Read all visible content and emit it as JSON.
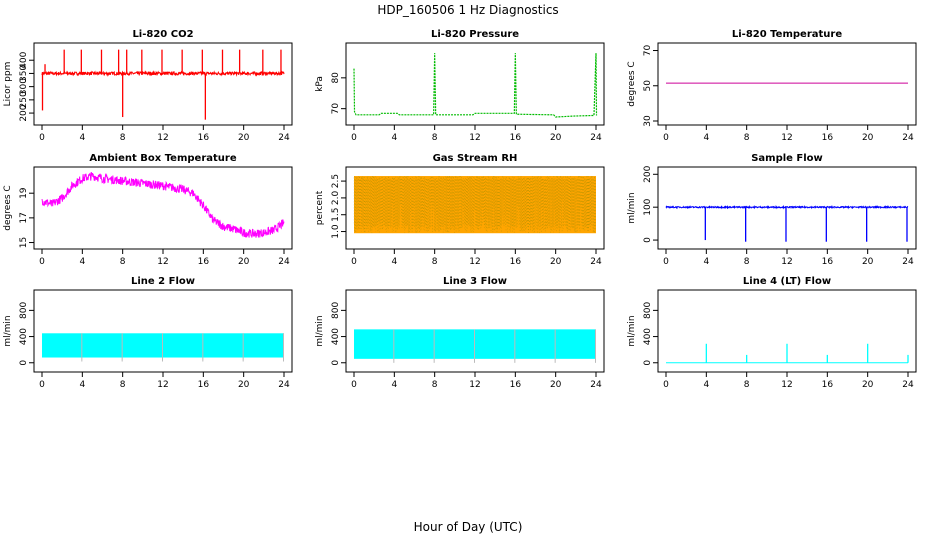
{
  "figure": {
    "title": "HDP_160506  1 Hz Diagnostics",
    "xlabel": "Hour of Day (UTC)"
  },
  "chart_data": [
    {
      "id": "co2",
      "type": "line",
      "title": "Li-820 CO2",
      "ylabel": "Licor ppm",
      "color": "#ff0000",
      "xlim": [
        0,
        24
      ],
      "ylim": [
        170,
        450
      ],
      "xticks": [
        0,
        4,
        8,
        12,
        16,
        20,
        24
      ],
      "yticks": [
        200,
        250,
        300,
        350,
        400
      ],
      "baseline": 350,
      "noise": 6,
      "dense": true,
      "spikes": [
        {
          "x": 0.05,
          "y": 210
        },
        {
          "x": 0.3,
          "y": 385
        },
        {
          "x": 2.2,
          "y": 440
        },
        {
          "x": 3.9,
          "y": 440
        },
        {
          "x": 5.9,
          "y": 440
        },
        {
          "x": 7.6,
          "y": 440
        },
        {
          "x": 8.0,
          "y": 185
        },
        {
          "x": 8.4,
          "y": 440
        },
        {
          "x": 9.9,
          "y": 440
        },
        {
          "x": 11.9,
          "y": 440
        },
        {
          "x": 13.9,
          "y": 440
        },
        {
          "x": 15.9,
          "y": 440
        },
        {
          "x": 16.2,
          "y": 175
        },
        {
          "x": 17.9,
          "y": 440
        },
        {
          "x": 19.6,
          "y": 440
        },
        {
          "x": 21.9,
          "y": 440
        },
        {
          "x": 23.7,
          "y": 440
        }
      ],
      "points": []
    },
    {
      "id": "pressure",
      "type": "line",
      "title": "Li-820 Pressure",
      "ylabel": "kPa",
      "color": "#00bb00",
      "xlim": [
        0,
        24
      ],
      "ylim": [
        66,
        90
      ],
      "xticks": [
        0,
        4,
        8,
        12,
        16,
        20,
        24
      ],
      "yticks": [
        70,
        80
      ],
      "noise": 0,
      "dense": false,
      "points": [
        [
          0,
          83
        ],
        [
          0.05,
          69
        ],
        [
          0.2,
          68
        ],
        [
          2.5,
          68
        ],
        [
          2.7,
          68.5
        ],
        [
          4.3,
          68.5
        ],
        [
          4.5,
          68
        ],
        [
          7.9,
          68
        ],
        [
          8.0,
          88
        ],
        [
          8.1,
          68
        ],
        [
          11.8,
          68
        ],
        [
          12.0,
          68.5
        ],
        [
          15.9,
          68.5
        ],
        [
          16.0,
          88
        ],
        [
          16.1,
          68.2
        ],
        [
          19.8,
          68
        ],
        [
          20.0,
          67.3
        ],
        [
          21.8,
          67.6
        ],
        [
          23.8,
          67.8
        ],
        [
          24.0,
          88
        ],
        [
          24.05,
          67.8
        ]
      ]
    },
    {
      "id": "temperature",
      "type": "line",
      "title": "Li-820 Temperature",
      "ylabel": "degrees C",
      "color": "#cc0099",
      "xlim": [
        0,
        24
      ],
      "ylim": [
        30,
        72
      ],
      "xticks": [
        0,
        4,
        8,
        12,
        16,
        20,
        24
      ],
      "yticks": [
        30,
        50,
        70
      ],
      "noise": 0,
      "dense": false,
      "points": [
        [
          0,
          51.5
        ],
        [
          24,
          51.5
        ]
      ]
    },
    {
      "id": "ambient",
      "type": "line",
      "title": "Ambient Box Temperature",
      "ylabel": "degrees C",
      "color": "#ff00ff",
      "xlim": [
        0,
        24
      ],
      "ylim": [
        14.8,
        20.8
      ],
      "xticks": [
        0,
        4,
        8,
        12,
        16,
        20,
        24
      ],
      "yticks": [
        15,
        17,
        19
      ],
      "noise": 0.35,
      "dense": true,
      "points": [
        [
          0,
          18.4
        ],
        [
          1,
          18.1
        ],
        [
          2,
          18.6
        ],
        [
          3,
          19.6
        ],
        [
          4,
          20.2
        ],
        [
          5,
          20.4
        ],
        [
          6,
          20.2
        ],
        [
          8,
          20.0
        ],
        [
          10,
          19.8
        ],
        [
          12,
          19.6
        ],
        [
          14,
          19.3
        ],
        [
          15,
          19.0
        ],
        [
          16,
          18.0
        ],
        [
          17,
          16.8
        ],
        [
          18,
          16.3
        ],
        [
          19,
          16.1
        ],
        [
          20,
          15.8
        ],
        [
          21,
          15.7
        ],
        [
          22,
          15.8
        ],
        [
          23,
          16.0
        ],
        [
          24,
          16.6
        ]
      ]
    },
    {
      "id": "rh",
      "type": "band",
      "title": "Gas Stream RH",
      "ylabel": "percent",
      "color": "#ffa500",
      "color2": "#888800",
      "xlim": [
        0,
        24
      ],
      "ylim": [
        0.6,
        2.8
      ],
      "xticks": [
        0,
        4,
        8,
        12,
        16,
        20,
        24
      ],
      "yticks": [
        1.0,
        1.5,
        2.0,
        2.5
      ],
      "upper": 2.65,
      "lower": 0.95
    },
    {
      "id": "sample_flow",
      "type": "line",
      "title": "Sample Flow",
      "ylabel": "ml/min",
      "color": "#0000ff",
      "xlim": [
        0,
        24
      ],
      "ylim": [
        -15,
        210
      ],
      "xticks": [
        0,
        4,
        8,
        12,
        16,
        20,
        24
      ],
      "yticks": [
        0,
        100,
        200
      ],
      "baseline": 100,
      "noise": 2,
      "dense": true,
      "spikes": [
        {
          "x": 3.9,
          "y": 0
        },
        {
          "x": 7.9,
          "y": -5
        },
        {
          "x": 11.9,
          "y": -5
        },
        {
          "x": 15.9,
          "y": -5
        },
        {
          "x": 19.9,
          "y": -5
        },
        {
          "x": 23.9,
          "y": -5
        }
      ],
      "points": []
    },
    {
      "id": "line2",
      "type": "band",
      "title": "Line 2 Flow",
      "ylabel": "ml/min",
      "color": "#00ffff",
      "xlim": [
        0,
        24
      ],
      "ylim": [
        -80,
        1050
      ],
      "xticks": [
        0,
        4,
        8,
        12,
        16,
        20,
        24
      ],
      "yticks": [
        0,
        400,
        800
      ],
      "upper": 450,
      "lower": 80,
      "gaps": [
        3.95,
        7.95,
        11.95,
        15.95,
        19.95,
        23.95
      ]
    },
    {
      "id": "line3",
      "type": "band",
      "title": "Line 3 Flow",
      "ylabel": "ml/min",
      "color": "#00ffff",
      "xlim": [
        0,
        24
      ],
      "ylim": [
        -80,
        1050
      ],
      "xticks": [
        0,
        4,
        8,
        12,
        16,
        20,
        24
      ],
      "yticks": [
        0,
        400,
        800
      ],
      "upper": 510,
      "lower": 60,
      "gaps": [
        3.95,
        7.95,
        11.95,
        15.95,
        19.95,
        23.95
      ]
    },
    {
      "id": "line4",
      "type": "line",
      "title": "Line 4 (LT) Flow",
      "ylabel": "ml/min",
      "color": "#00ffff",
      "xlim": [
        0,
        24
      ],
      "ylim": [
        -80,
        1050
      ],
      "xticks": [
        0,
        4,
        8,
        12,
        16,
        20,
        24
      ],
      "yticks": [
        0,
        400,
        800
      ],
      "baseline": 0,
      "noise": 0,
      "dense": false,
      "spikes": [
        {
          "x": 4.0,
          "y": 290
        },
        {
          "x": 8.0,
          "y": 120
        },
        {
          "x": 12.0,
          "y": 290
        },
        {
          "x": 16.0,
          "y": 120
        },
        {
          "x": 20.0,
          "y": 290
        },
        {
          "x": 24.0,
          "y": 120
        }
      ],
      "points": []
    }
  ]
}
